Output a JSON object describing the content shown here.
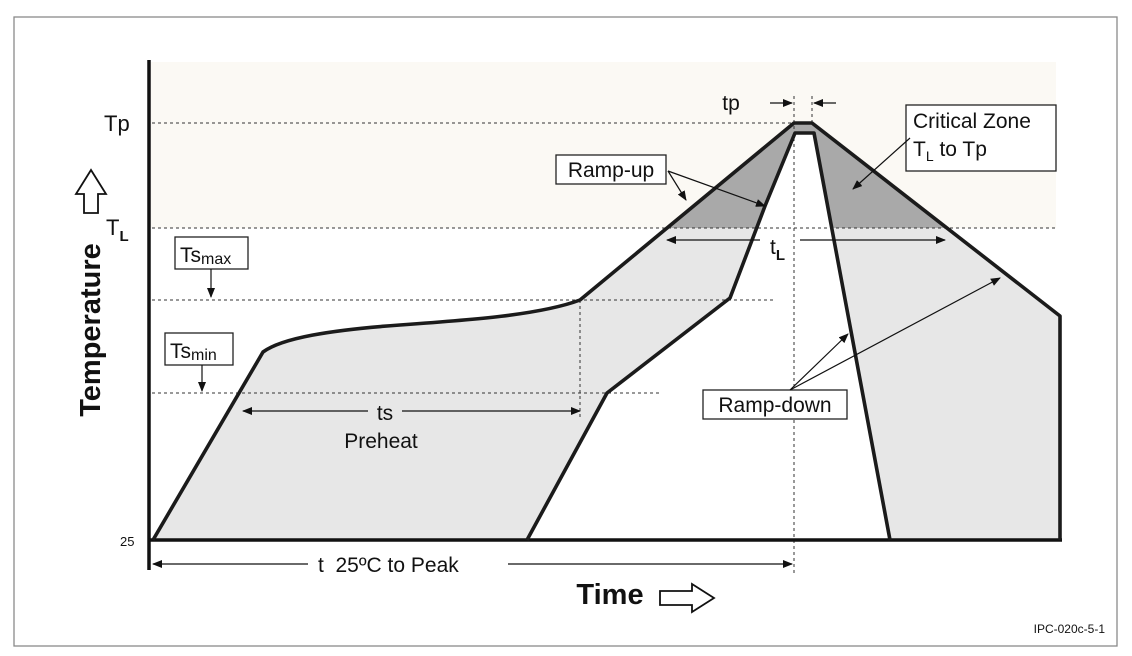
{
  "figure": {
    "axis_y_label": "Temperature",
    "axis_x_label": "Time",
    "figure_code": "IPC-020c-5-1"
  },
  "levels": {
    "tp": "Tp",
    "tl_main": "T",
    "tl_sub": "L",
    "base": "25"
  },
  "callouts": {
    "tsmax_main": "Ts",
    "tsmax_sub": "max",
    "tsmin_main": "Ts",
    "tsmin_sub": "min",
    "ramp_up": "Ramp-up",
    "ramp_down": "Ramp-down",
    "critical_line1": "Critical Zone",
    "critical_line2_t": "T",
    "critical_line2_sub": "L",
    "critical_line2_rest": " to Tp"
  },
  "intervals": {
    "tp": "tp",
    "tl_main": "t",
    "tl_sub": "L",
    "ts": "ts",
    "preheat": "Preheat",
    "total": "t  25ºC to Peak"
  },
  "colors": {
    "process_window": "#e7e7e7",
    "critical_zone": "#a9a9a9",
    "upper_band": "#fbf9f4",
    "curve": "#1b1b1b"
  }
}
